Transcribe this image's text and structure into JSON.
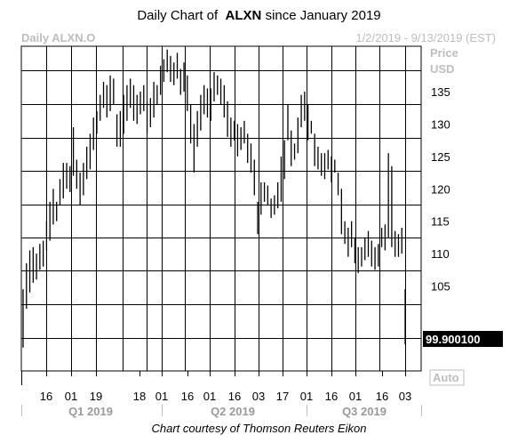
{
  "page": {
    "title_prefix": "Daily Chart of",
    "ticker": "ALXN",
    "title_suffix": "since January 2019",
    "credit": "Chart courtesy of Thomson Reuters Eikon"
  },
  "chart_data": {
    "type": "ohlc",
    "chart_label": "Daily ALXN.O",
    "date_range_label": "1/2/2019 - 9/13/2019 (EST)",
    "ylabel": "Price",
    "unit_label": "USD",
    "ylim": [
      94.5,
      142.0
    ],
    "yticks": [
      105,
      110,
      115,
      120,
      125,
      130,
      135
    ],
    "grid": true,
    "last_value": 99.9001,
    "last_value_label": "99.900100",
    "auto_label": "Auto",
    "x_tick_labels": [
      "16",
      "01",
      "19",
      "18",
      "01",
      "16",
      "01",
      "16",
      "03",
      "17",
      "01",
      "16",
      "01",
      "16",
      "03"
    ],
    "quarters": [
      "Q1 2019",
      "Q2 2019",
      "Q3 2019"
    ],
    "colors": {
      "bars": "#000000",
      "grid": "#000000",
      "faded_text": "#bdbdbd",
      "quarter_text": "#9a9a9a"
    },
    "bars": [
      [
        95.5,
        104.5
      ],
      [
        101.5,
        108.5
      ],
      [
        104.0,
        110.5
      ],
      [
        105.5,
        111.0
      ],
      [
        106.0,
        110.0
      ],
      [
        107.5,
        111.5
      ],
      [
        108.0,
        112.0
      ],
      [
        110.5,
        115.0
      ],
      [
        112.0,
        118.0
      ],
      [
        114.5,
        120.0
      ],
      [
        115.0,
        118.0
      ],
      [
        117.5,
        121.5
      ],
      [
        118.5,
        124.0
      ],
      [
        120.0,
        124.0
      ],
      [
        119.5,
        123.5
      ],
      [
        122.0,
        129.5
      ],
      [
        120.0,
        124.5
      ],
      [
        117.5,
        122.5
      ],
      [
        119.0,
        124.0
      ],
      [
        121.5,
        126.5
      ],
      [
        123.0,
        128.5
      ],
      [
        126.0,
        131.0
      ],
      [
        128.5,
        132.0
      ],
      [
        130.5,
        134.5
      ],
      [
        132.5,
        136.5
      ],
      [
        131.0,
        136.0
      ],
      [
        132.0,
        137.5
      ],
      [
        133.0,
        137.0
      ],
      [
        126.5,
        131.5
      ],
      [
        126.5,
        132.0
      ],
      [
        128.5,
        134.5
      ],
      [
        130.5,
        136.0
      ],
      [
        132.5,
        137.0
      ],
      [
        130.5,
        136.0
      ],
      [
        130.0,
        134.5
      ],
      [
        131.5,
        135.0
      ],
      [
        132.0,
        136.0
      ],
      [
        128.5,
        133.5
      ],
      [
        129.5,
        134.0
      ],
      [
        131.0,
        136.5
      ],
      [
        133.0,
        136.0
      ],
      [
        134.5,
        139.0
      ],
      [
        136.5,
        140.0
      ],
      [
        138.0,
        141.5
      ],
      [
        136.5,
        140.5
      ],
      [
        136.0,
        139.5
      ],
      [
        137.0,
        141.0
      ],
      [
        134.5,
        138.5
      ],
      [
        135.0,
        139.5
      ],
      [
        132.0,
        137.5
      ],
      [
        127.0,
        133.0
      ],
      [
        122.5,
        130.0
      ],
      [
        126.5,
        132.0
      ],
      [
        129.0,
        134.5
      ],
      [
        131.5,
        136.0
      ],
      [
        131.0,
        135.5
      ],
      [
        130.5,
        135.5
      ],
      [
        133.5,
        138.0
      ],
      [
        134.5,
        137.5
      ],
      [
        133.0,
        137.0
      ],
      [
        131.0,
        136.0
      ],
      [
        128.0,
        133.5
      ],
      [
        126.5,
        131.0
      ],
      [
        127.5,
        130.5
      ],
      [
        125.0,
        130.0
      ],
      [
        126.0,
        129.5
      ],
      [
        127.0,
        130.5
      ],
      [
        124.0,
        128.5
      ],
      [
        122.5,
        127.0
      ],
      [
        119.0,
        124.5
      ],
      [
        113.0,
        118.0
      ],
      [
        116.0,
        121.0
      ],
      [
        118.0,
        121.0
      ],
      [
        117.5,
        120.5
      ],
      [
        115.5,
        118.5
      ],
      [
        116.0,
        119.0
      ],
      [
        117.0,
        121.0
      ],
      [
        118.0,
        125.0
      ],
      [
        121.5,
        127.5
      ],
      [
        127.5,
        133.0
      ],
      [
        123.5,
        129.0
      ],
      [
        124.5,
        127.0
      ],
      [
        125.5,
        131.0
      ],
      [
        129.5,
        134.5
      ],
      [
        130.5,
        135.0
      ],
      [
        127.5,
        133.0
      ],
      [
        128.5,
        130.5
      ],
      [
        123.5,
        128.5
      ],
      [
        123.0,
        126.5
      ],
      [
        122.0,
        125.5
      ],
      [
        121.5,
        125.5
      ],
      [
        123.0,
        126.0
      ],
      [
        121.0,
        125.0
      ],
      [
        122.5,
        124.5
      ],
      [
        119.0,
        122.5
      ],
      [
        113.0,
        120.0
      ],
      [
        111.5,
        115.0
      ],
      [
        109.5,
        114.0
      ],
      [
        111.0,
        115.0
      ],
      [
        108.5,
        112.5
      ],
      [
        107.0,
        111.0
      ],
      [
        108.0,
        111.0
      ],
      [
        109.0,
        112.5
      ],
      [
        109.5,
        113.5
      ],
      [
        108.0,
        112.0
      ],
      [
        107.5,
        111.0
      ],
      [
        108.0,
        111.5
      ],
      [
        111.0,
        114.0
      ],
      [
        110.5,
        114.5
      ],
      [
        112.5,
        125.5
      ],
      [
        111.0,
        123.5
      ],
      [
        109.5,
        113.5
      ],
      [
        109.5,
        113.0
      ],
      [
        110.0,
        114.0
      ],
      [
        96.0,
        104.5
      ]
    ]
  }
}
